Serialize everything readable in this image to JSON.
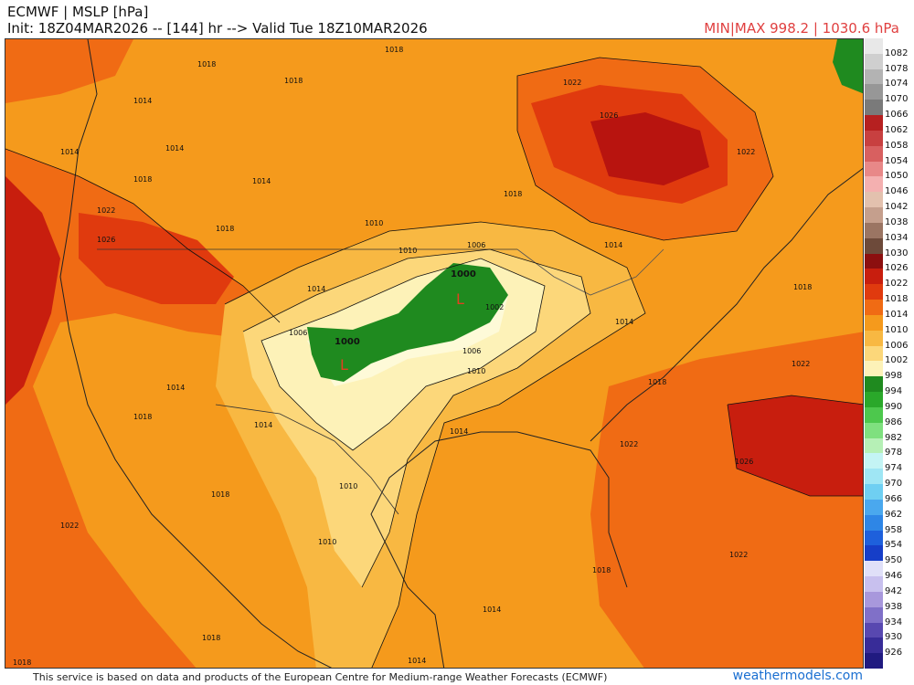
{
  "header": {
    "title": "ECMWF | MSLP [hPa]",
    "init": "Init: 18Z04MAR2026 -- [144] hr --> Valid Tue 18Z10MAR2026",
    "minmax": "MIN|MAX 998.2 | 1030.6 hPa"
  },
  "footer": {
    "credit": "This service is based on data and products of the European Centre for Medium-range Weather Forecasts (ECMWF)",
    "watermark": "weathermodels.com"
  },
  "colorbar": {
    "labels": [
      "1082",
      "1078",
      "1074",
      "1070",
      "1066",
      "1062",
      "1058",
      "1054",
      "1050",
      "1046",
      "1042",
      "1038",
      "1034",
      "1030",
      "1026",
      "1022",
      "1018",
      "1014",
      "1010",
      "1006",
      "1002",
      "998",
      "994",
      "990",
      "986",
      "982",
      "978",
      "974",
      "970",
      "966",
      "962",
      "958",
      "954",
      "950",
      "946",
      "942",
      "938",
      "934",
      "930",
      "926"
    ],
    "colors": [
      "#e8e8e8",
      "#cfcfcf",
      "#b3b3b3",
      "#979797",
      "#7a7a7a",
      "#b62020",
      "#c84040",
      "#d86060",
      "#e88888",
      "#f4b0b0",
      "#e3c1ae",
      "#c59f8d",
      "#9b7563",
      "#6d4a3a",
      "#8c0f0f",
      "#c81e0e",
      "#e03a0e",
      "#f06b14",
      "#f59a1c",
      "#f8b842",
      "#fcd77a",
      "#fdf2b8",
      "#1f8a1f",
      "#2aa82a",
      "#4dc84d",
      "#7fe07f",
      "#b6f0b6",
      "#c4f4f4",
      "#9fe6f4",
      "#6fcff2",
      "#4aa8ee",
      "#2e86e6",
      "#1e60dc",
      "#163ec8",
      "#e0e0f8",
      "#c8c0ee",
      "#a898dc",
      "#8070c8",
      "#5848b0",
      "#382c98",
      "#201a80"
    ]
  },
  "map": {
    "isobar_labels": [
      "1018",
      "1018",
      "1018",
      "1022",
      "1014",
      "1026",
      "1026",
      "1022",
      "1014",
      "1014",
      "1014",
      "1018",
      "1022",
      "1018",
      "1018",
      "1010",
      "1010",
      "1006",
      "1000",
      "1000",
      "1002",
      "1006",
      "1010",
      "1014",
      "1014",
      "1022",
      "1026",
      "1022",
      "1018",
      "1014",
      "1010",
      "1010",
      "1018",
      "1014",
      "1018",
      "1022",
      "1018",
      "1014",
      "1018",
      "1006",
      "1014",
      "1014",
      "1018",
      "1014",
      "1022",
      "1018"
    ],
    "low_markers": [
      "L",
      "L"
    ]
  }
}
